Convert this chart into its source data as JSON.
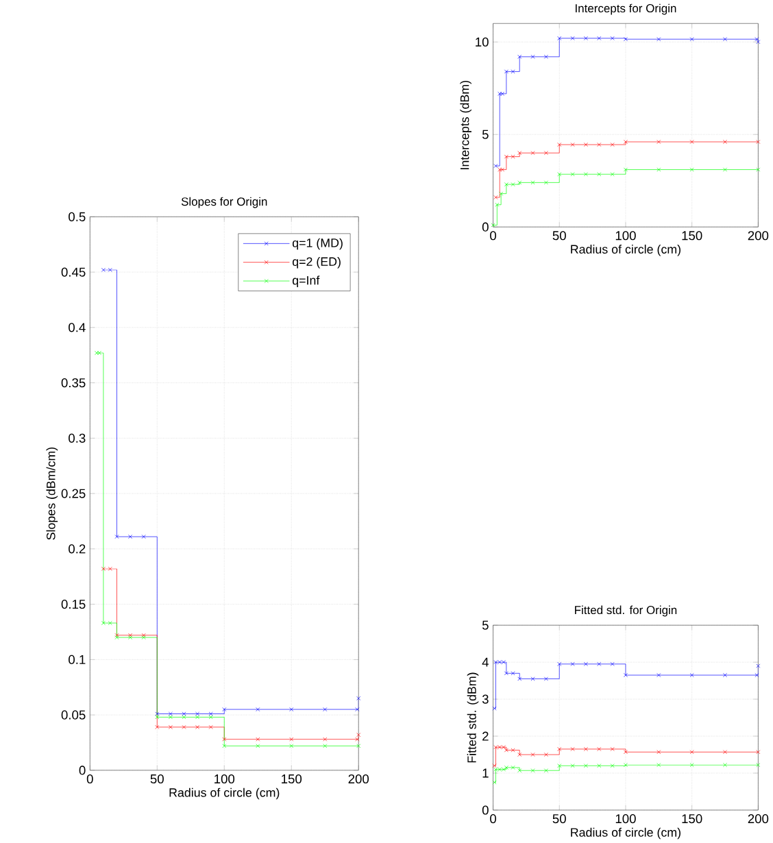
{
  "chart_data": [
    {
      "type": "step",
      "title": "Slopes for Origin",
      "xlabel": "Radius of circle (cm)",
      "ylabel": "Slopes (dBm/cm)",
      "xlim": [
        0,
        200
      ],
      "ylim": [
        0,
        0.5
      ],
      "xticks": [
        0,
        50,
        100,
        150,
        200
      ],
      "yticks": [
        0,
        0.05,
        0.1,
        0.15,
        0.2,
        0.25,
        0.3,
        0.35,
        0.4,
        0.45,
        0.5
      ],
      "grid": true,
      "legend": "top right",
      "marker": "cross",
      "line_style": "solid",
      "series": [
        {
          "name": "q=1 (MD)",
          "color": "#0000ff",
          "x": [
            10,
            15,
            20,
            30,
            40,
            50,
            60,
            70,
            80,
            90,
            100,
            125,
            150,
            175,
            199,
            200
          ],
          "values": [
            0.452,
            0.452,
            0.211,
            0.211,
            0.211,
            0.051,
            0.051,
            0.051,
            0.051,
            0.051,
            0.055,
            0.055,
            0.055,
            0.055,
            0.055,
            0.065
          ]
        },
        {
          "name": "q=2 (ED)",
          "color": "#ff0000",
          "x": [
            10,
            15,
            20,
            30,
            40,
            50,
            60,
            70,
            80,
            90,
            100,
            125,
            150,
            175,
            199,
            200
          ],
          "values": [
            0.182,
            0.182,
            0.122,
            0.122,
            0.122,
            0.039,
            0.039,
            0.039,
            0.039,
            0.039,
            0.028,
            0.028,
            0.028,
            0.028,
            0.028,
            0.032
          ]
        },
        {
          "name": "q=Inf",
          "color": "#00ff00",
          "x": [
            5,
            7,
            10,
            15,
            20,
            30,
            40,
            50,
            60,
            70,
            80,
            90,
            100,
            125,
            150,
            175,
            200
          ],
          "values": [
            0.377,
            0.377,
            0.133,
            0.133,
            0.12,
            0.12,
            0.12,
            0.048,
            0.048,
            0.048,
            0.048,
            0.048,
            0.022,
            0.022,
            0.022,
            0.022,
            0.022
          ]
        }
      ]
    },
    {
      "type": "step",
      "title": "Intercepts for Origin",
      "xlabel": "Radius of circle (cm)",
      "ylabel": "Intercepts (dBm)",
      "xlim": [
        0,
        200
      ],
      "ylim": [
        0,
        11
      ],
      "xticks": [
        0,
        50,
        100,
        150,
        200
      ],
      "yticks": [
        0,
        5,
        10
      ],
      "grid": true,
      "marker": "cross",
      "line_style": "solid",
      "series": [
        {
          "color": "#0000ff",
          "x": [
            2,
            5,
            7,
            10,
            15,
            20,
            30,
            40,
            50,
            60,
            70,
            80,
            90,
            100,
            125,
            150,
            175,
            199,
            200
          ],
          "values": [
            3.3,
            7.2,
            7.2,
            8.4,
            8.4,
            9.2,
            9.2,
            9.2,
            10.2,
            10.2,
            10.2,
            10.2,
            10.2,
            10.15,
            10.15,
            10.15,
            10.15,
            10.15,
            10.0
          ]
        },
        {
          "color": "#ff0000",
          "x": [
            2,
            5,
            7,
            10,
            15,
            20,
            30,
            40,
            50,
            60,
            70,
            80,
            90,
            100,
            125,
            150,
            175,
            200
          ],
          "values": [
            1.6,
            3.1,
            3.1,
            3.8,
            3.8,
            4.0,
            4.0,
            4.0,
            4.45,
            4.45,
            4.45,
            4.45,
            4.45,
            4.6,
            4.6,
            4.6,
            4.6,
            4.6
          ]
        },
        {
          "color": "#00ff00",
          "x": [
            0,
            3,
            6,
            10,
            15,
            20,
            30,
            40,
            50,
            60,
            70,
            80,
            90,
            100,
            125,
            150,
            175,
            200
          ],
          "values": [
            0.1,
            1.2,
            1.8,
            2.3,
            2.3,
            2.4,
            2.4,
            2.4,
            2.85,
            2.85,
            2.85,
            2.85,
            2.85,
            3.1,
            3.1,
            3.1,
            3.1,
            3.1
          ]
        }
      ]
    },
    {
      "type": "step",
      "title": "Fitted std. for Origin",
      "xlabel": "Radius of circle (cm)",
      "ylabel": "Fitted std. (dBm)",
      "xlim": [
        0,
        200
      ],
      "ylim": [
        0,
        5
      ],
      "xticks": [
        0,
        50,
        100,
        150,
        200
      ],
      "yticks": [
        0,
        1,
        2,
        3,
        4,
        5
      ],
      "grid": true,
      "marker": "cross",
      "line_style": "solid",
      "series": [
        {
          "color": "#0000ff",
          "x": [
            1,
            2,
            5,
            8,
            10,
            15,
            20,
            30,
            40,
            50,
            60,
            70,
            80,
            90,
            100,
            125,
            150,
            175,
            199,
            200
          ],
          "values": [
            2.75,
            4.0,
            4.0,
            4.0,
            3.7,
            3.7,
            3.55,
            3.55,
            3.55,
            3.95,
            3.95,
            3.95,
            3.95,
            3.95,
            3.65,
            3.65,
            3.65,
            3.65,
            3.65,
            3.9
          ]
        },
        {
          "color": "#ff0000",
          "x": [
            1,
            2,
            5,
            8,
            10,
            15,
            20,
            30,
            40,
            50,
            60,
            70,
            80,
            90,
            100,
            125,
            150,
            175,
            200
          ],
          "values": [
            1.2,
            1.7,
            1.7,
            1.7,
            1.62,
            1.62,
            1.5,
            1.5,
            1.5,
            1.65,
            1.65,
            1.65,
            1.65,
            1.65,
            1.57,
            1.57,
            1.57,
            1.57,
            1.57
          ]
        },
        {
          "color": "#00ff00",
          "x": [
            1,
            2,
            5,
            8,
            10,
            15,
            20,
            30,
            40,
            50,
            60,
            70,
            80,
            90,
            100,
            125,
            150,
            175,
            200
          ],
          "values": [
            0.75,
            1.1,
            1.1,
            1.1,
            1.15,
            1.15,
            1.07,
            1.07,
            1.07,
            1.2,
            1.2,
            1.2,
            1.2,
            1.2,
            1.22,
            1.22,
            1.22,
            1.22,
            1.22
          ]
        }
      ]
    }
  ]
}
